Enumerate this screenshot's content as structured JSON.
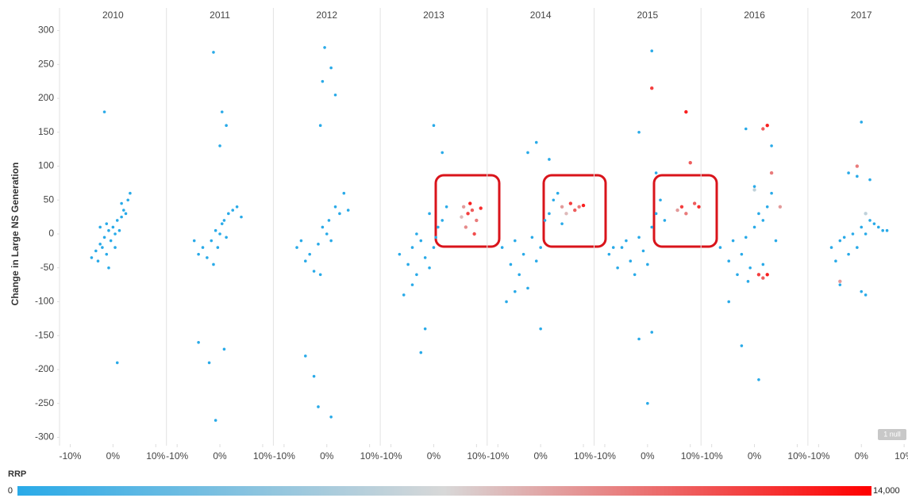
{
  "chart_data": {
    "type": "scatter",
    "y_label": "Change in Large NS Generation",
    "xlim": [
      -12.5,
      12.5
    ],
    "xticks": [
      {
        "value": -10,
        "label": "-10%"
      },
      {
        "value": 0,
        "label": "0%"
      },
      {
        "value": 10,
        "label": "10%"
      }
    ],
    "ylim": [
      -310,
      310
    ],
    "yticks": [
      -300,
      -250,
      -200,
      -150,
      -100,
      -50,
      0,
      50,
      100,
      150,
      200,
      250,
      300
    ],
    "colorbar": {
      "title": "RRP",
      "ticks": [
        0,
        {
          "value": 14000,
          "label": "14,000"
        }
      ],
      "colors": [
        "#29aae8",
        "#d8d8d8",
        "#ff0000"
      ]
    },
    "null_badge": "1 null",
    "panels": [
      {
        "title": "2010",
        "x": [
          -5,
          -4,
          -3.5,
          -3,
          -2.5,
          -2,
          -1.5,
          -1,
          -0.5,
          0,
          0.5,
          1,
          1.5,
          2,
          2.5,
          3,
          3.5,
          4,
          -2,
          1,
          0.5,
          -3,
          -1,
          2,
          -1.5
        ],
        "y": [
          -35,
          -25,
          -40,
          -15,
          -20,
          -5,
          -30,
          5,
          -10,
          10,
          0,
          20,
          5,
          25,
          35,
          30,
          50,
          60,
          180,
          -190,
          -20,
          10,
          -50,
          45,
          15
        ],
        "rrp": [
          0,
          0,
          0,
          0,
          0,
          0,
          0,
          0,
          0,
          0,
          0,
          0,
          0,
          0,
          0,
          0,
          0,
          0,
          0,
          0,
          0,
          0,
          0,
          0,
          0
        ]
      },
      {
        "title": "2011",
        "x": [
          -6,
          -5,
          -4,
          -3,
          -2,
          -1.5,
          -1,
          -0.5,
          0,
          0.5,
          1,
          1.5,
          2,
          3,
          4,
          5,
          -1.5,
          0.5,
          1.5,
          -1,
          -2.5,
          -5,
          1,
          0
        ],
        "y": [
          -10,
          -30,
          -20,
          -35,
          -10,
          -45,
          5,
          -20,
          0,
          15,
          20,
          -5,
          30,
          35,
          40,
          25,
          268,
          180,
          160,
          -275,
          -190,
          -160,
          -170,
          130
        ],
        "rrp": [
          0,
          0,
          0,
          0,
          0,
          0,
          0,
          0,
          0,
          0,
          0,
          0,
          0,
          0,
          0,
          0,
          0,
          0,
          0,
          0,
          0,
          0,
          0,
          0
        ]
      },
      {
        "title": "2012",
        "x": [
          -7,
          -6,
          -5,
          -4,
          -3,
          -2,
          -1.5,
          -1,
          0,
          0.5,
          1,
          2,
          3,
          4,
          5,
          -0.5,
          -1,
          1,
          2,
          -1.5,
          -5,
          -3,
          -2,
          1
        ],
        "y": [
          -20,
          -10,
          -40,
          -30,
          -55,
          -15,
          -60,
          10,
          0,
          20,
          -10,
          40,
          30,
          60,
          35,
          275,
          225,
          245,
          205,
          160,
          -180,
          -210,
          -255,
          -270
        ],
        "rrp": [
          0,
          0,
          0,
          0,
          0,
          0,
          0,
          0,
          0,
          0,
          0,
          0,
          0,
          0,
          0,
          0,
          0,
          0,
          0,
          0,
          0,
          0,
          0,
          0
        ]
      },
      {
        "title": "2013",
        "x": [
          -8,
          -6,
          -5,
          -4,
          -3,
          -2,
          -1,
          0,
          1,
          2,
          3,
          -7,
          -5,
          -2,
          0,
          2,
          -3,
          -1,
          0.5,
          -4,
          7,
          8,
          9,
          10,
          8.5,
          11,
          7.5,
          9.5,
          6.5
        ],
        "y": [
          -30,
          -45,
          -20,
          -60,
          -10,
          -35,
          -50,
          -20,
          10,
          20,
          40,
          -90,
          -75,
          -140,
          160,
          120,
          -175,
          30,
          -5,
          0,
          40,
          30,
          35,
          20,
          45,
          38,
          10,
          0,
          25
        ],
        "rrp": [
          0,
          0,
          0,
          0,
          0,
          0,
          0,
          0,
          0,
          0,
          0,
          0,
          0,
          0,
          0,
          0,
          0,
          0,
          0,
          0,
          9000,
          12000,
          11000,
          10000,
          13000,
          12500,
          9500,
          11500,
          8000
        ]
      },
      {
        "title": "2014",
        "x": [
          -9,
          -7,
          -6,
          -5,
          -4,
          -3,
          -2,
          -1,
          0,
          1,
          2,
          3,
          4,
          -1,
          -3,
          0,
          2,
          5,
          -6,
          -8,
          5,
          7,
          8,
          9,
          10,
          6
        ],
        "y": [
          -20,
          -45,
          -10,
          -60,
          -30,
          -80,
          -5,
          -40,
          -20,
          20,
          30,
          50,
          60,
          135,
          120,
          -140,
          110,
          15,
          -85,
          -100,
          40,
          45,
          35,
          40,
          42,
          30
        ],
        "rrp": [
          0,
          0,
          0,
          0,
          0,
          0,
          0,
          0,
          0,
          0,
          0,
          0,
          0,
          0,
          0,
          0,
          0,
          0,
          0,
          0,
          9000,
          12000,
          11000,
          10000,
          13000,
          8000
        ]
      },
      {
        "title": "2015",
        "x": [
          -9,
          -7,
          -6,
          -5,
          -4,
          -3,
          -2,
          -1,
          0,
          1,
          2,
          3,
          -2,
          1,
          0,
          1,
          -2,
          2,
          -8,
          4,
          1,
          9,
          10,
          8,
          9,
          11,
          7,
          12
        ],
        "y": [
          -30,
          -50,
          -20,
          -10,
          -40,
          -60,
          -5,
          -25,
          -45,
          10,
          30,
          50,
          150,
          270,
          -250,
          -145,
          -155,
          90,
          -20,
          20,
          215,
          180,
          105,
          40,
          30,
          45,
          35,
          40
        ],
        "rrp": [
          0,
          0,
          0,
          0,
          0,
          0,
          0,
          0,
          0,
          0,
          0,
          0,
          0,
          0,
          0,
          0,
          0,
          0,
          0,
          0,
          12000,
          13000,
          11000,
          12000,
          10000,
          11000,
          9000,
          12500
        ]
      },
      {
        "title": "2016",
        "x": [
          -8,
          -6,
          -5,
          -4,
          -3,
          -2,
          -1,
          0,
          1,
          2,
          3,
          4,
          5,
          -2,
          1,
          -3,
          0,
          -6,
          2,
          -1.5,
          4,
          2,
          3,
          4,
          1,
          2,
          3,
          6,
          0
        ],
        "y": [
          -20,
          -40,
          -10,
          -60,
          -30,
          -5,
          -50,
          10,
          30,
          20,
          40,
          60,
          -10,
          155,
          -215,
          -165,
          70,
          -100,
          -45,
          -70,
          130,
          155,
          160,
          90,
          -60,
          -65,
          -60,
          40,
          65
        ],
        "rrp": [
          0,
          0,
          0,
          0,
          0,
          0,
          0,
          0,
          0,
          0,
          0,
          0,
          0,
          0,
          0,
          0,
          0,
          0,
          0,
          0,
          0,
          11000,
          13000,
          10000,
          12000,
          11000,
          13000,
          9000,
          6000
        ]
      },
      {
        "title": "2017",
        "x": [
          -7,
          -6,
          -5,
          -4,
          -3,
          -2,
          -1,
          0,
          1,
          2,
          3,
          4,
          5,
          6,
          -3,
          -1,
          0,
          2,
          -5,
          0,
          1,
          -1,
          -5,
          1
        ],
        "y": [
          -20,
          -40,
          -10,
          -5,
          -30,
          0,
          -20,
          10,
          0,
          20,
          15,
          10,
          5,
          5,
          90,
          85,
          165,
          80,
          -75,
          -85,
          -90,
          100,
          -70,
          30
        ],
        "rrp": [
          0,
          0,
          0,
          0,
          0,
          0,
          0,
          0,
          0,
          0,
          0,
          0,
          0,
          0,
          0,
          0,
          0,
          0,
          0,
          0,
          0,
          10000,
          9000,
          6000
        ]
      }
    ]
  }
}
